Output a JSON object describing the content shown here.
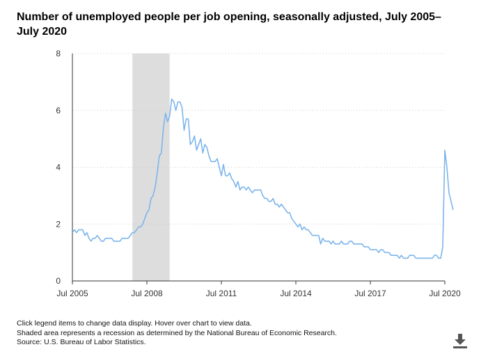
{
  "title": "Number of unemployed people per job opening, seasonally adjusted, July 2005–July 2020",
  "notes": {
    "interaction": "Click legend items to change data display. Hover over chart to view data.",
    "shading": "Shaded area represents a recession as determined by the National Bureau of Economic Research.",
    "source": "Source: U.S. Bureau of Labor Statistics."
  },
  "icons": {
    "download": "download-icon"
  },
  "colors": {
    "line": "#7cb5ec",
    "recession": "#dddddd",
    "grid": "#cccccc"
  },
  "chart_data": {
    "type": "line",
    "title": "Number of unemployed people per job opening, seasonally adjusted, July 2005–July 2020",
    "xlabel": "",
    "ylabel": "",
    "x_ticks": [
      "Jul 2005",
      "Jul 2008",
      "Jul 2011",
      "Jul 2014",
      "Jul 2017",
      "Jul 2020"
    ],
    "y_ticks": [
      0,
      2,
      4,
      6,
      8
    ],
    "ylim": [
      0,
      8
    ],
    "xlim": [
      "2005-07",
      "2020-07"
    ],
    "grid": "horizontal dotted",
    "recession": {
      "start": "2007-12",
      "end": "2009-06"
    },
    "series": [
      {
        "start": "2005-07",
        "frequency": "monthly",
        "values": [
          1.7,
          1.8,
          1.7,
          1.8,
          1.8,
          1.8,
          1.6,
          1.7,
          1.5,
          1.4,
          1.5,
          1.5,
          1.6,
          1.5,
          1.4,
          1.4,
          1.5,
          1.5,
          1.5,
          1.5,
          1.4,
          1.4,
          1.4,
          1.4,
          1.5,
          1.5,
          1.5,
          1.5,
          1.6,
          1.7,
          1.7,
          1.8,
          1.9,
          1.9,
          2.0,
          2.2,
          2.4,
          2.5,
          2.9,
          3.0,
          3.3,
          3.8,
          4.4,
          4.5,
          5.4,
          5.9,
          5.6,
          5.8,
          6.4,
          6.3,
          6.0,
          6.3,
          6.3,
          6.1,
          5.3,
          5.7,
          5.7,
          4.8,
          4.9,
          5.1,
          4.6,
          4.8,
          5.0,
          4.5,
          4.8,
          4.7,
          4.4,
          4.2,
          4.2,
          4.2,
          4.3,
          4.0,
          3.7,
          4.1,
          3.7,
          3.7,
          3.8,
          3.6,
          3.5,
          3.3,
          3.5,
          3.2,
          3.3,
          3.3,
          3.2,
          3.3,
          3.2,
          3.1,
          3.2,
          3.2,
          3.2,
          3.2,
          3.0,
          2.9,
          2.9,
          2.8,
          2.8,
          2.9,
          2.7,
          2.7,
          2.6,
          2.7,
          2.6,
          2.5,
          2.4,
          2.4,
          2.2,
          2.1,
          2.0,
          1.9,
          2.0,
          1.8,
          1.9,
          1.8,
          1.8,
          1.7,
          1.6,
          1.6,
          1.6,
          1.6,
          1.3,
          1.5,
          1.4,
          1.4,
          1.4,
          1.3,
          1.4,
          1.3,
          1.3,
          1.3,
          1.4,
          1.3,
          1.3,
          1.3,
          1.4,
          1.4,
          1.3,
          1.3,
          1.3,
          1.3,
          1.3,
          1.2,
          1.2,
          1.2,
          1.1,
          1.1,
          1.1,
          1.1,
          1.0,
          1.1,
          1.1,
          1.0,
          1.0,
          1.0,
          0.9,
          0.9,
          0.9,
          0.9,
          0.8,
          0.9,
          0.8,
          0.8,
          0.8,
          0.9,
          0.9,
          0.9,
          0.8,
          0.8,
          0.8,
          0.8,
          0.8,
          0.8,
          0.8,
          0.8,
          0.8,
          0.9,
          0.9,
          0.8,
          0.8,
          1.2,
          4.6,
          4.0,
          3.1,
          2.8,
          2.5
        ]
      }
    ]
  }
}
